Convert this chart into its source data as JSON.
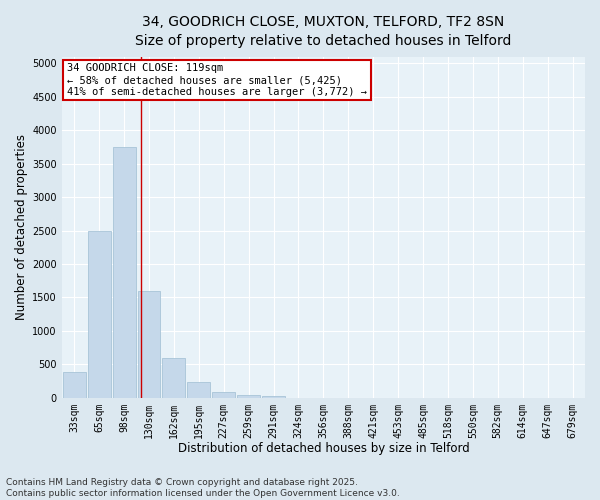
{
  "title_line1": "34, GOODRICH CLOSE, MUXTON, TELFORD, TF2 8SN",
  "title_line2": "Size of property relative to detached houses in Telford",
  "xlabel": "Distribution of detached houses by size in Telford",
  "ylabel": "Number of detached properties",
  "categories": [
    "33sqm",
    "65sqm",
    "98sqm",
    "130sqm",
    "162sqm",
    "195sqm",
    "227sqm",
    "259sqm",
    "291sqm",
    "324sqm",
    "356sqm",
    "388sqm",
    "421sqm",
    "453sqm",
    "485sqm",
    "518sqm",
    "550sqm",
    "582sqm",
    "614sqm",
    "647sqm",
    "679sqm"
  ],
  "values": [
    380,
    2500,
    3750,
    1600,
    600,
    230,
    90,
    45,
    20,
    0,
    0,
    0,
    0,
    0,
    0,
    0,
    0,
    0,
    0,
    0,
    0
  ],
  "bar_color": "#c5d8ea",
  "bar_edge_color": "#a8c4d8",
  "vline_x_index": 2.67,
  "vline_color": "#cc0000",
  "ylim": [
    0,
    5100
  ],
  "yticks": [
    0,
    500,
    1000,
    1500,
    2000,
    2500,
    3000,
    3500,
    4000,
    4500,
    5000
  ],
  "annotation_text": "34 GOODRICH CLOSE: 119sqm\n← 58% of detached houses are smaller (5,425)\n41% of semi-detached houses are larger (3,772) →",
  "annotation_box_facecolor": "#ffffff",
  "annotation_box_edgecolor": "#cc0000",
  "footer_line1": "Contains HM Land Registry data © Crown copyright and database right 2025.",
  "footer_line2": "Contains public sector information licensed under the Open Government Licence v3.0.",
  "bg_color": "#dce8f0",
  "plot_bg_color": "#e8f2f8",
  "title_fontsize": 10,
  "subtitle_fontsize": 9,
  "tick_fontsize": 7,
  "label_fontsize": 8.5,
  "footer_fontsize": 6.5,
  "annotation_fontsize": 7.5,
  "grid_color": "#ffffff"
}
